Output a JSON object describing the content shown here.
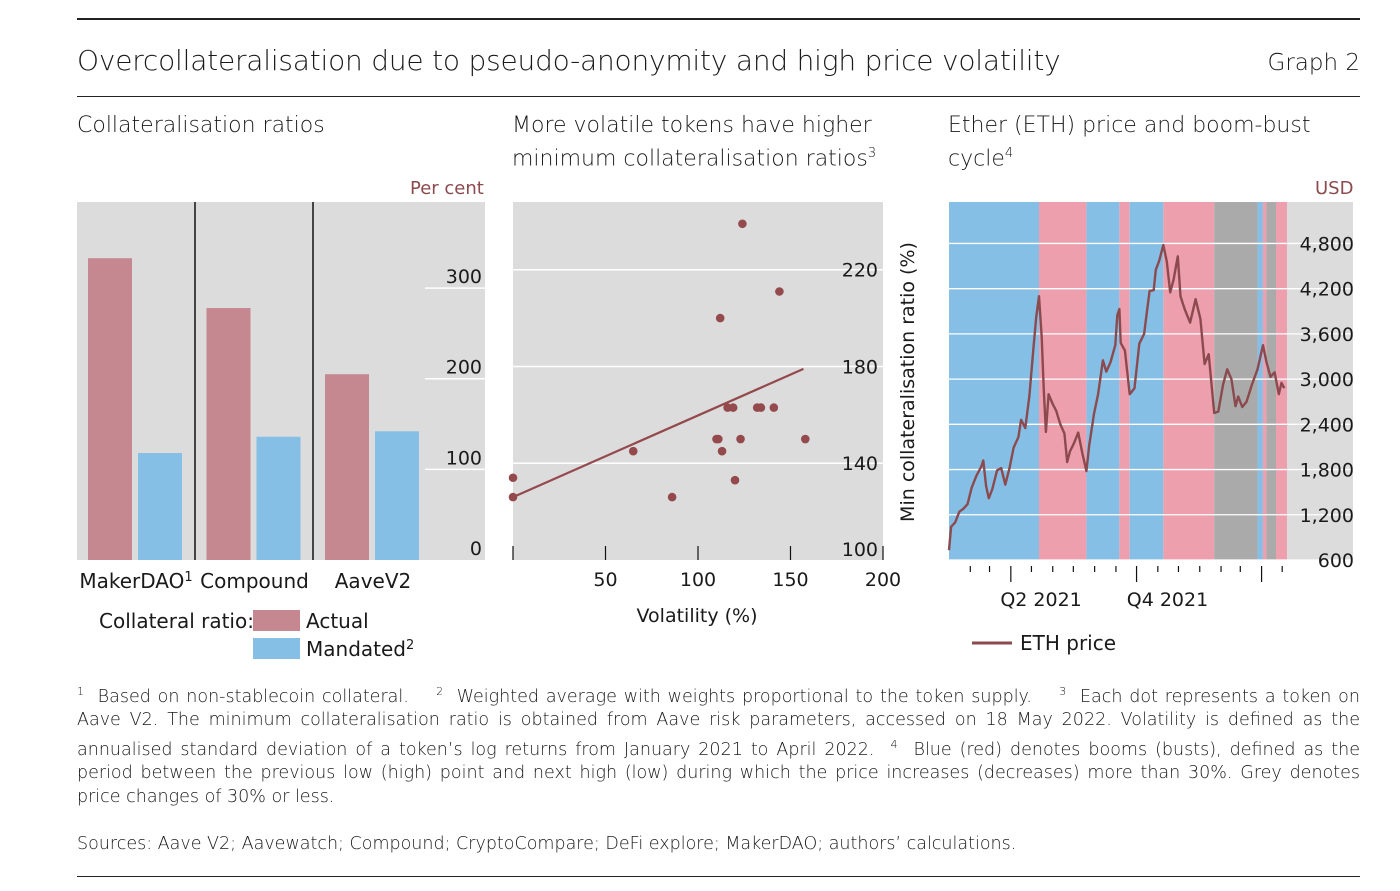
{
  "header": {
    "title": "Overcollateralisation due to pseudo-anonymity and high price volatility",
    "graph_label": "Graph 2"
  },
  "panels": {
    "left": {
      "title": "Collateralisation ratios",
      "unit": "Per cent",
      "legend_prefix": "Collateral ratio:",
      "legend_actual": "Actual",
      "legend_mandated": "Mandated",
      "legend_mandated_sup": "2"
    },
    "middle": {
      "title_line1": "More volatile tokens have higher",
      "title_line2": "minimum collateralisation ratios",
      "title_sup": "3"
    },
    "right": {
      "title_line1": "Ether (ETH) price and boom-bust",
      "title_line2": "cycle",
      "title_sup": "4",
      "unit": "USD",
      "legend": "ETH price"
    }
  },
  "colors": {
    "actual": "#c58790",
    "mandated": "#86bfe6",
    "dots": "#94494d",
    "boom": "#86bfe6",
    "bust": "#ee9fae",
    "grey": "#aaaaaa",
    "plot_bg": "#dcdcdc",
    "eth_line": "#8b4a4e"
  },
  "chart_data": [
    {
      "type": "bar",
      "categories": [
        "MakerDAO",
        "Compound",
        "AaveV2"
      ],
      "category_sups": [
        "1",
        "",
        ""
      ],
      "series": [
        {
          "name": "Actual",
          "values": [
            333,
            278,
            205
          ]
        },
        {
          "name": "Mandated",
          "values": [
            118,
            136,
            142
          ]
        }
      ],
      "ylim": [
        0,
        395
      ],
      "yticks": [
        0,
        100,
        200,
        300
      ],
      "ylabel": "Per cent"
    },
    {
      "type": "scatter",
      "xlabel": "Volatility (%)",
      "ylabel": "Min collateralisation ratio (%)",
      "xlim": [
        0,
        200
      ],
      "ylim": [
        100,
        248
      ],
      "xticks": [
        50,
        100,
        150,
        200
      ],
      "yticks": [
        100,
        140,
        180,
        220
      ],
      "points": [
        [
          0,
          134
        ],
        [
          0,
          126
        ],
        [
          65,
          145
        ],
        [
          86,
          126
        ],
        [
          110,
          150
        ],
        [
          111,
          150
        ],
        [
          112,
          200
        ],
        [
          113,
          145
        ],
        [
          116,
          163
        ],
        [
          119,
          163
        ],
        [
          120,
          133
        ],
        [
          123,
          150
        ],
        [
          124,
          239
        ],
        [
          132,
          163
        ],
        [
          134,
          163
        ],
        [
          141,
          163
        ],
        [
          144,
          211
        ],
        [
          158,
          150
        ]
      ],
      "trend": [
        [
          0,
          126
        ],
        [
          157,
          179
        ]
      ]
    },
    {
      "type": "line",
      "x_tick_labels": [
        "Q2 2021",
        "Q4 2021"
      ],
      "ylim": [
        600,
        5350
      ],
      "yticks": [
        600,
        1200,
        1800,
        2400,
        3000,
        3600,
        4200,
        4800
      ],
      "ytick_labels": [
        "600",
        "1,200",
        "1,800",
        "2,400",
        "3,000",
        "3,600",
        "4,200",
        "4,800"
      ],
      "ylabel": "USD",
      "series": [
        {
          "name": "ETH price",
          "points": [
            [
              "2021-01-01",
              730
            ],
            [
              "2021-01-04",
              1040
            ],
            [
              "2021-01-10",
              1100
            ],
            [
              "2021-01-16",
              1240
            ],
            [
              "2021-01-22",
              1280
            ],
            [
              "2021-01-28",
              1340
            ],
            [
              "2021-02-03",
              1560
            ],
            [
              "2021-02-10",
              1720
            ],
            [
              "2021-02-17",
              1840
            ],
            [
              "2021-02-20",
              1920
            ],
            [
              "2021-02-24",
              1580
            ],
            [
              "2021-02-28",
              1420
            ],
            [
              "2021-03-05",
              1540
            ],
            [
              "2021-03-12",
              1790
            ],
            [
              "2021-03-18",
              1820
            ],
            [
              "2021-03-24",
              1600
            ],
            [
              "2021-03-30",
              1820
            ],
            [
              "2021-04-05",
              2090
            ],
            [
              "2021-04-12",
              2230
            ],
            [
              "2021-04-16",
              2460
            ],
            [
              "2021-04-22",
              2350
            ],
            [
              "2021-04-28",
              2780
            ],
            [
              "2021-05-04",
              3420
            ],
            [
              "2021-05-08",
              3820
            ],
            [
              "2021-05-12",
              4100
            ],
            [
              "2021-05-16",
              3560
            ],
            [
              "2021-05-19",
              2850
            ],
            [
              "2021-05-22",
              2300
            ],
            [
              "2021-05-26",
              2800
            ],
            [
              "2021-06-01",
              2670
            ],
            [
              "2021-06-06",
              2580
            ],
            [
              "2021-06-12",
              2400
            ],
            [
              "2021-06-18",
              2280
            ],
            [
              "2021-06-22",
              1900
            ],
            [
              "2021-06-26",
              2040
            ],
            [
              "2021-07-02",
              2150
            ],
            [
              "2021-07-08",
              2290
            ],
            [
              "2021-07-14",
              2020
            ],
            [
              "2021-07-20",
              1780
            ],
            [
              "2021-07-24",
              2110
            ],
            [
              "2021-07-31",
              2540
            ],
            [
              "2021-08-06",
              2800
            ],
            [
              "2021-08-13",
              3250
            ],
            [
              "2021-08-18",
              3100
            ],
            [
              "2021-08-24",
              3220
            ],
            [
              "2021-08-31",
              3450
            ],
            [
              "2021-09-03",
              3850
            ],
            [
              "2021-09-06",
              3930
            ],
            [
              "2021-09-08",
              3480
            ],
            [
              "2021-09-14",
              3380
            ],
            [
              "2021-09-21",
              2800
            ],
            [
              "2021-09-28",
              2880
            ],
            [
              "2021-10-05",
              3470
            ],
            [
              "2021-10-12",
              3600
            ],
            [
              "2021-10-20",
              4170
            ],
            [
              "2021-10-26",
              4180
            ],
            [
              "2021-10-29",
              4450
            ],
            [
              "2021-11-03",
              4570
            ],
            [
              "2021-11-09",
              4780
            ],
            [
              "2021-11-14",
              4560
            ],
            [
              "2021-11-19",
              4150
            ],
            [
              "2021-11-24",
              4320
            ],
            [
              "2021-11-30",
              4630
            ],
            [
              "2021-12-04",
              4100
            ],
            [
              "2021-12-10",
              3930
            ],
            [
              "2021-12-18",
              3750
            ],
            [
              "2021-12-26",
              4060
            ],
            [
              "2022-01-02",
              3800
            ],
            [
              "2022-01-08",
              3200
            ],
            [
              "2022-01-14",
              3330
            ],
            [
              "2022-01-22",
              2550
            ],
            [
              "2022-01-28",
              2570
            ],
            [
              "2022-02-04",
              2930
            ],
            [
              "2022-02-10",
              3130
            ],
            [
              "2022-02-16",
              3000
            ],
            [
              "2022-02-22",
              2640
            ],
            [
              "2022-02-26",
              2770
            ],
            [
              "2022-03-04",
              2630
            ],
            [
              "2022-03-10",
              2700
            ],
            [
              "2022-03-18",
              2930
            ],
            [
              "2022-03-26",
              3130
            ],
            [
              "2022-04-03",
              3450
            ],
            [
              "2022-04-08",
              3230
            ],
            [
              "2022-04-14",
              3030
            ],
            [
              "2022-04-20",
              3090
            ],
            [
              "2022-04-26",
              2800
            ],
            [
              "2022-04-30",
              2950
            ],
            [
              "2022-05-04",
              2880
            ]
          ]
        }
      ]
    }
  ],
  "footnotes": [
    "Based on non-stablecoin collateral.",
    "Weighted average with weights proportional to the token supply.",
    "Each dot represents a token on Aave V2. The minimum collateralisation ratio is obtained from Aave risk parameters, accessed on 18 May 2022. Volatility is defined as the annualised standard deviation of a token’s log returns from January 2021 to April 2022.",
    "Blue (red) denotes booms (busts), defined as the period between the previous low (high) point and next high (low) during which the price increases (decreases) more than 30%. Grey denotes price changes of 30% or less."
  ],
  "footnote_marks": [
    "1",
    "2",
    "3",
    "4"
  ],
  "sources": "Sources: Aave V2; Aavewatch; Compound; CryptoCompare; DeFi explore; MakerDAO; authors’ calculations."
}
